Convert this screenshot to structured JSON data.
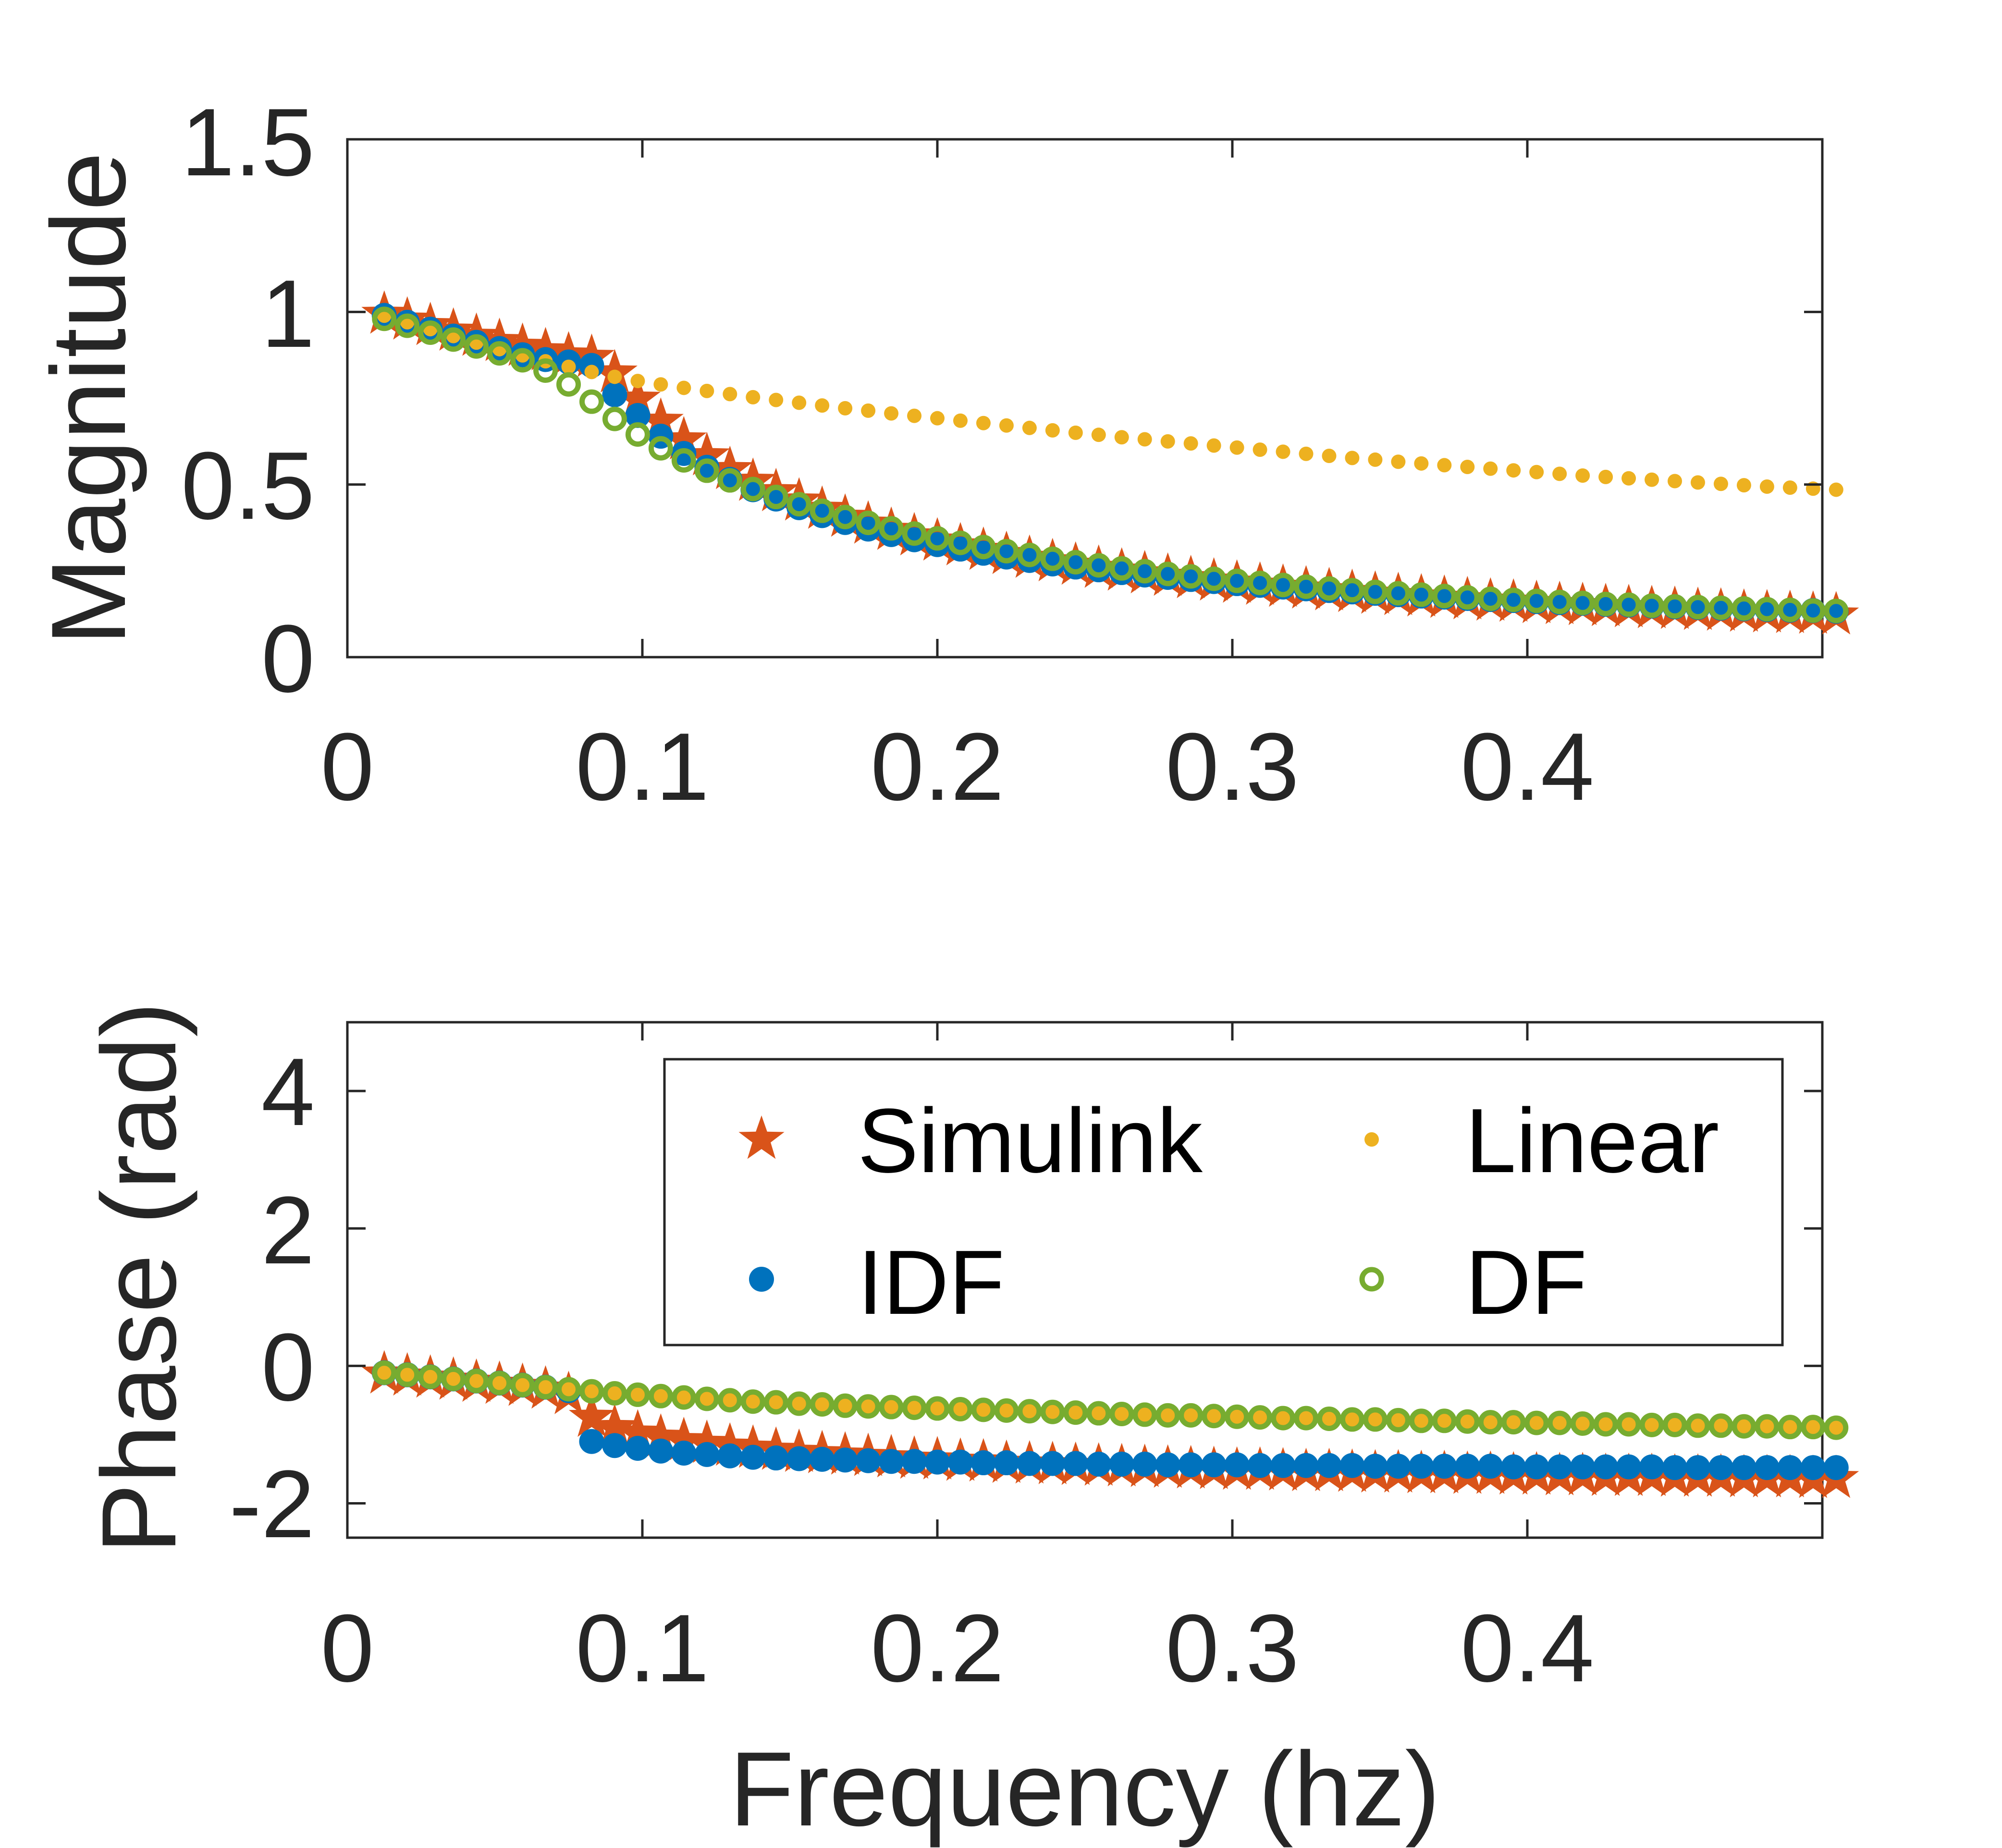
{
  "chart_data": [
    {
      "type": "scatter",
      "id": "magnitude",
      "xlabel": "",
      "ylabel": "Magnitude",
      "xlim": [
        0,
        0.5
      ],
      "ylim": [
        0,
        1.5
      ],
      "xticks": [
        0,
        0.1,
        0.2,
        0.3,
        0.4
      ],
      "xtick_labels": [
        "0",
        "0.1",
        "0.2",
        "0.3",
        "0.4"
      ],
      "yticks": [
        0,
        0.5,
        1,
        1.5
      ],
      "ytick_labels": [
        "0",
        "0.5",
        "1",
        "1.5"
      ],
      "x_range": {
        "start": 0.0125,
        "step": 0.0078125,
        "count": 64
      },
      "series": [
        {
          "name": "Simulink",
          "marker": "star",
          "color": "#D95319",
          "values": [
            0.993,
            0.976,
            0.96,
            0.944,
            0.929,
            0.914,
            0.9,
            0.887,
            0.875,
            0.868,
            0.823,
            0.747,
            0.683,
            0.629,
            0.583,
            0.543,
            0.509,
            0.479,
            0.452,
            0.428,
            0.405,
            0.385,
            0.367,
            0.351,
            0.336,
            0.322,
            0.309,
            0.297,
            0.286,
            0.276,
            0.266,
            0.257,
            0.249,
            0.241,
            0.234,
            0.227,
            0.22,
            0.214,
            0.208,
            0.202,
            0.197,
            0.192,
            0.187,
            0.182,
            0.178,
            0.174,
            0.17,
            0.166,
            0.162,
            0.159,
            0.155,
            0.152,
            0.149,
            0.146,
            0.143,
            0.14,
            0.138,
            0.135,
            0.133,
            0.13,
            0.128,
            0.126,
            0.124,
            0.122
          ]
        },
        {
          "name": "IDF",
          "marker": "dot",
          "color": "#0072BD",
          "values": [
            0.99,
            0.97,
            0.95,
            0.93,
            0.912,
            0.894,
            0.876,
            0.862,
            0.855,
            0.845,
            0.76,
            0.7,
            0.64,
            0.59,
            0.55,
            0.515,
            0.485,
            0.458,
            0.433,
            0.41,
            0.39,
            0.371,
            0.355,
            0.34,
            0.326,
            0.313,
            0.301,
            0.29,
            0.28,
            0.27,
            0.261,
            0.253,
            0.245,
            0.238,
            0.231,
            0.225,
            0.219,
            0.213,
            0.208,
            0.203,
            0.198,
            0.193,
            0.189,
            0.185,
            0.181,
            0.177,
            0.174,
            0.17,
            0.167,
            0.164,
            0.161,
            0.158,
            0.156,
            0.153,
            0.151,
            0.148,
            0.146,
            0.144,
            0.142,
            0.14,
            0.138,
            0.136,
            0.135,
            0.133
          ]
        },
        {
          "name": "Linear",
          "marker": "small-dot",
          "color": "#EDB120",
          "values": [
            0.989,
            0.97,
            0.95,
            0.93,
            0.911,
            0.892,
            0.874,
            0.857,
            0.841,
            0.826,
            0.812,
            0.8,
            0.79,
            0.78,
            0.771,
            0.762,
            0.753,
            0.745,
            0.737,
            0.729,
            0.721,
            0.714,
            0.706,
            0.699,
            0.692,
            0.685,
            0.678,
            0.671,
            0.664,
            0.657,
            0.65,
            0.644,
            0.637,
            0.631,
            0.625,
            0.619,
            0.613,
            0.607,
            0.601,
            0.595,
            0.589,
            0.583,
            0.577,
            0.572,
            0.566,
            0.561,
            0.556,
            0.551,
            0.546,
            0.541,
            0.536,
            0.531,
            0.526,
            0.522,
            0.518,
            0.514,
            0.51,
            0.506,
            0.502,
            0.498,
            0.494,
            0.491,
            0.488,
            0.485
          ]
        },
        {
          "name": "DF",
          "marker": "circle",
          "color": "#77AC30",
          "values": [
            0.98,
            0.96,
            0.94,
            0.92,
            0.9,
            0.88,
            0.86,
            0.83,
            0.79,
            0.74,
            0.69,
            0.645,
            0.605,
            0.57,
            0.54,
            0.512,
            0.487,
            0.464,
            0.443,
            0.424,
            0.406,
            0.389,
            0.373,
            0.358,
            0.344,
            0.331,
            0.319,
            0.307,
            0.296,
            0.285,
            0.275,
            0.266,
            0.257,
            0.249,
            0.241,
            0.234,
            0.227,
            0.221,
            0.215,
            0.209,
            0.204,
            0.199,
            0.194,
            0.189,
            0.185,
            0.181,
            0.177,
            0.173,
            0.169,
            0.166,
            0.163,
            0.16,
            0.157,
            0.154,
            0.152,
            0.149,
            0.147,
            0.145,
            0.143,
            0.141,
            0.139,
            0.137,
            0.135,
            0.134
          ]
        }
      ]
    },
    {
      "type": "scatter",
      "id": "phase",
      "xlabel": "Frequency (hz)",
      "ylabel": "Phase (rad)",
      "xlim": [
        0,
        0.5
      ],
      "ylim": [
        -2.5,
        5
      ],
      "xticks": [
        0,
        0.1,
        0.2,
        0.3,
        0.4
      ],
      "xtick_labels": [
        "0",
        "0.1",
        "0.2",
        "0.3",
        "0.4"
      ],
      "yticks": [
        -2,
        0,
        2,
        4
      ],
      "ytick_labels": [
        "-2",
        "0",
        "2",
        "4"
      ],
      "x_range": {
        "start": 0.0125,
        "step": 0.0078125,
        "count": 64
      },
      "series": [
        {
          "name": "Simulink",
          "marker": "star",
          "color": "#D95319",
          "values": [
            -0.12,
            -0.15,
            -0.18,
            -0.21,
            -0.24,
            -0.27,
            -0.3,
            -0.34,
            -0.42,
            -0.75,
            -0.9,
            -0.98,
            -1.04,
            -1.09,
            -1.13,
            -1.17,
            -1.2,
            -1.23,
            -1.26,
            -1.28,
            -1.3,
            -1.32,
            -1.34,
            -1.36,
            -1.37,
            -1.39,
            -1.4,
            -1.42,
            -1.43,
            -1.44,
            -1.45,
            -1.46,
            -1.47,
            -1.48,
            -1.49,
            -1.5,
            -1.51,
            -1.52,
            -1.52,
            -1.53,
            -1.54,
            -1.54,
            -1.55,
            -1.56,
            -1.56,
            -1.57,
            -1.57,
            -1.58,
            -1.58,
            -1.59,
            -1.59,
            -1.6,
            -1.6,
            -1.61,
            -1.61,
            -1.61,
            -1.62,
            -1.62,
            -1.62,
            -1.63,
            -1.63,
            -1.63,
            -1.64,
            -1.64
          ]
        },
        {
          "name": "IDF",
          "marker": "dot",
          "color": "#0072BD",
          "values": [
            -0.1,
            -0.13,
            -0.16,
            -0.19,
            -0.22,
            -0.25,
            -0.28,
            -0.31,
            -0.36,
            -1.1,
            -1.16,
            -1.2,
            -1.24,
            -1.27,
            -1.29,
            -1.31,
            -1.33,
            -1.34,
            -1.35,
            -1.36,
            -1.37,
            -1.38,
            -1.39,
            -1.39,
            -1.4,
            -1.4,
            -1.41,
            -1.41,
            -1.42,
            -1.42,
            -1.42,
            -1.43,
            -1.43,
            -1.43,
            -1.44,
            -1.44,
            -1.44,
            -1.44,
            -1.45,
            -1.45,
            -1.45,
            -1.45,
            -1.45,
            -1.46,
            -1.46,
            -1.46,
            -1.46,
            -1.46,
            -1.46,
            -1.47,
            -1.47,
            -1.47,
            -1.47,
            -1.47,
            -1.47,
            -1.47,
            -1.48,
            -1.48,
            -1.48,
            -1.48,
            -1.48,
            -1.48,
            -1.48,
            -1.48
          ]
        },
        {
          "name": "Linear",
          "marker": "small-dot",
          "color": "#EDB120",
          "values": [
            -0.1,
            -0.13,
            -0.16,
            -0.19,
            -0.22,
            -0.25,
            -0.28,
            -0.31,
            -0.34,
            -0.37,
            -0.4,
            -0.42,
            -0.44,
            -0.46,
            -0.48,
            -0.5,
            -0.52,
            -0.53,
            -0.55,
            -0.56,
            -0.58,
            -0.59,
            -0.6,
            -0.61,
            -0.62,
            -0.63,
            -0.64,
            -0.65,
            -0.66,
            -0.67,
            -0.68,
            -0.69,
            -0.7,
            -0.71,
            -0.72,
            -0.72,
            -0.73,
            -0.74,
            -0.75,
            -0.76,
            -0.76,
            -0.77,
            -0.78,
            -0.78,
            -0.79,
            -0.8,
            -0.8,
            -0.81,
            -0.82,
            -0.82,
            -0.83,
            -0.83,
            -0.84,
            -0.85,
            -0.85,
            -0.86,
            -0.86,
            -0.87,
            -0.87,
            -0.88,
            -0.88,
            -0.89,
            -0.89,
            -0.9
          ]
        },
        {
          "name": "DF",
          "marker": "circle",
          "color": "#77AC30",
          "values": [
            -0.1,
            -0.13,
            -0.16,
            -0.19,
            -0.22,
            -0.25,
            -0.28,
            -0.31,
            -0.34,
            -0.37,
            -0.4,
            -0.42,
            -0.44,
            -0.46,
            -0.48,
            -0.5,
            -0.52,
            -0.53,
            -0.55,
            -0.56,
            -0.58,
            -0.59,
            -0.6,
            -0.61,
            -0.62,
            -0.63,
            -0.64,
            -0.65,
            -0.66,
            -0.67,
            -0.68,
            -0.69,
            -0.7,
            -0.71,
            -0.72,
            -0.72,
            -0.73,
            -0.74,
            -0.75,
            -0.76,
            -0.76,
            -0.77,
            -0.78,
            -0.78,
            -0.79,
            -0.8,
            -0.8,
            -0.81,
            -0.82,
            -0.82,
            -0.83,
            -0.83,
            -0.84,
            -0.85,
            -0.85,
            -0.86,
            -0.86,
            -0.87,
            -0.87,
            -0.88,
            -0.88,
            -0.89,
            -0.89,
            -0.9
          ]
        }
      ],
      "legend": {
        "placement": "top-right",
        "entries": [
          {
            "label": "Simulink",
            "marker": "star",
            "color": "#D95319"
          },
          {
            "label": "Linear",
            "marker": "small-dot",
            "color": "#EDB120"
          },
          {
            "label": "IDF",
            "marker": "dot",
            "color": "#0072BD"
          },
          {
            "label": "DF",
            "marker": "circle",
            "color": "#77AC30"
          }
        ]
      }
    }
  ]
}
